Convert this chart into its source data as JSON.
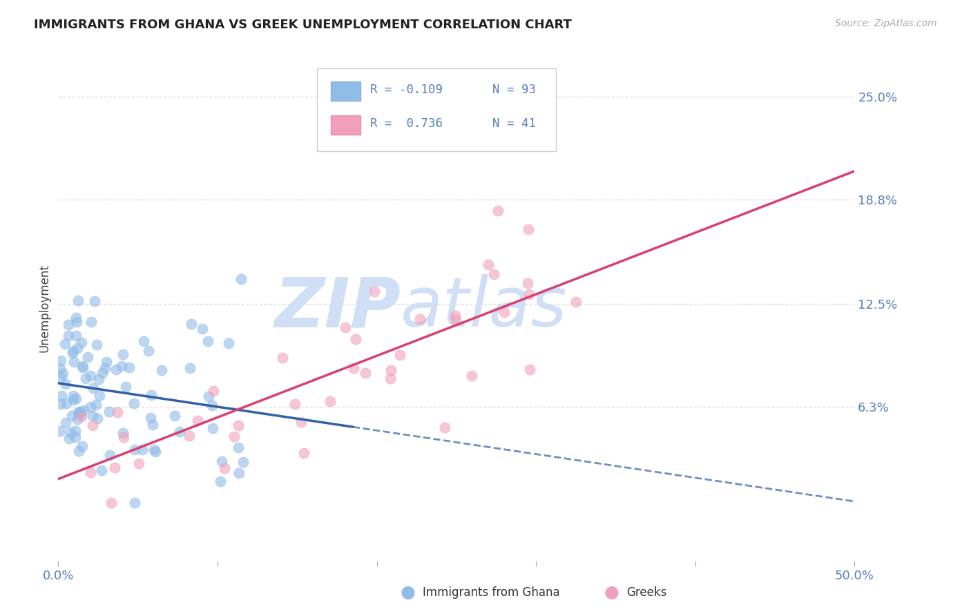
{
  "title": "IMMIGRANTS FROM GHANA VS GREEK UNEMPLOYMENT CORRELATION CHART",
  "source_text": "Source: ZipAtlas.com",
  "ylabel": "Unemployment",
  "xlim": [
    0.0,
    0.5
  ],
  "ylim": [
    -0.03,
    0.275
  ],
  "ytick_vals": [
    0.063,
    0.125,
    0.188,
    0.25
  ],
  "ytick_labels": [
    "6.3%",
    "12.5%",
    "18.8%",
    "25.0%"
  ],
  "xtick_vals": [
    0.0,
    0.1,
    0.2,
    0.3,
    0.4,
    0.5
  ],
  "xtick_labels": [
    "0.0%",
    "",
    "",
    "",
    "",
    "50.0%"
  ],
  "legend_r1": "R = -0.109",
  "legend_n1": "N = 93",
  "legend_r2": "R =  0.736",
  "legend_n2": "N = 41",
  "ghana_color": "#90bce8",
  "greek_color": "#f0a0b8",
  "ghana_edge_color": "#6090c8",
  "greek_edge_color": "#e06888",
  "ghana_line_color": "#3060a8",
  "greek_line_color": "#d84070",
  "watermark_zip": "ZIP",
  "watermark_atlas": "atlas",
  "watermark_color": "#d0dff5",
  "background_color": "#ffffff",
  "grid_color": "#cccccc",
  "title_color": "#222222",
  "tick_label_color": "#5a7fbf",
  "source_color": "#aaaaaa",
  "legend_text_color": "#5a7fbf",
  "legend_label_color": "#333333"
}
